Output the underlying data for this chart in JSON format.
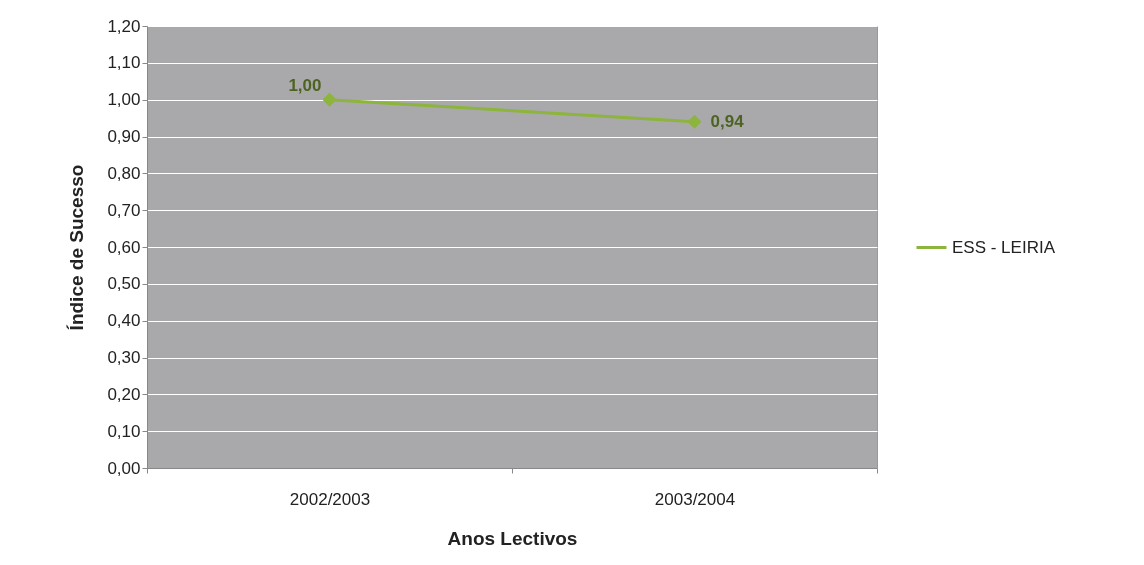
{
  "chart_data": {
    "type": "line",
    "xlabel": "Anos Lectivos",
    "ylabel": "Índice de Sucesso",
    "categories": [
      "2002/2003",
      "2003/2004"
    ],
    "series": [
      {
        "name": "ESS - LEIRIA",
        "color": "#8db43c",
        "values": [
          1.0,
          0.94
        ],
        "value_labels": [
          "1,00",
          "0,94"
        ]
      }
    ],
    "ylim": [
      0,
      1.2
    ],
    "yticks": [
      {
        "value": 0,
        "label": "0,00"
      },
      {
        "value": 0.1,
        "label": "0,10"
      },
      {
        "value": 0.2,
        "label": "0,20"
      },
      {
        "value": 0.3,
        "label": "0,30"
      },
      {
        "value": 0.4,
        "label": "0,40"
      },
      {
        "value": 0.5,
        "label": "0,50"
      },
      {
        "value": 0.6,
        "label": "0,60"
      },
      {
        "value": 0.7,
        "label": "0,70"
      },
      {
        "value": 0.8,
        "label": "0,80"
      },
      {
        "value": 0.9,
        "label": "0,90"
      },
      {
        "value": 1.0,
        "label": "1,00"
      },
      {
        "value": 1.1,
        "label": "1,10"
      },
      {
        "value": 1.2,
        "label": "1,20"
      }
    ],
    "grid": "y",
    "legend": "right",
    "marker": "diamond",
    "line_style": "solid"
  }
}
